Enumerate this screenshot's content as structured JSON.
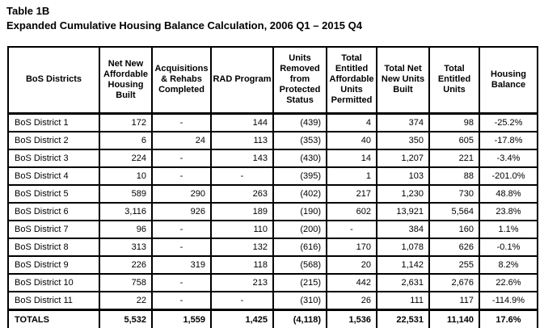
{
  "page": {
    "title": "Table 1B",
    "subtitle": "Expanded Cumulative Housing Balance Calculation, 2006 Q1 – 2015 Q4"
  },
  "colors": {
    "text": "#000000",
    "border": "#000000",
    "background": "#ffffff"
  },
  "table": {
    "columns": [
      "BoS Districts",
      "Net New Affordable Housing Built",
      "Acquisitions & Rehabs Completed",
      "RAD Program",
      "Units Removed from Protected Status",
      "Total Entitled Affordable Units Permitted",
      "Total Net New Units Built",
      "Total Entitled Units",
      "Housing Balance"
    ],
    "rows": [
      {
        "cells": [
          "BoS District 1",
          "172",
          "-",
          "144",
          "(439)",
          "4",
          "374",
          "98",
          "-25.2%"
        ]
      },
      {
        "cells": [
          "BoS District 2",
          "6",
          "24",
          "113",
          "(353)",
          "40",
          "350",
          "605",
          "-17.8%"
        ]
      },
      {
        "cells": [
          "BoS District 3",
          "224",
          "-",
          "143",
          "(430)",
          "14",
          "1,207",
          "221",
          "-3.4%"
        ]
      },
      {
        "cells": [
          "BoS District 4",
          "10",
          "-",
          "-",
          "(395)",
          "1",
          "103",
          "88",
          "-201.0%"
        ]
      },
      {
        "cells": [
          "BoS District 5",
          "589",
          "290",
          "263",
          "(402)",
          "217",
          "1,230",
          "730",
          "48.8%"
        ]
      },
      {
        "cells": [
          "BoS District 6",
          "3,116",
          "926",
          "189",
          "(190)",
          "602",
          "13,921",
          "5,564",
          "23.8%"
        ]
      },
      {
        "cells": [
          "BoS District 7",
          "96",
          "-",
          "110",
          "(200)",
          "-",
          "384",
          "160",
          "1.1%"
        ]
      },
      {
        "cells": [
          "BoS District 8",
          "313",
          "-",
          "132",
          "(616)",
          "170",
          "1,078",
          "626",
          "-0.1%"
        ]
      },
      {
        "cells": [
          "BoS District 9",
          "226",
          "319",
          "118",
          "(568)",
          "20",
          "1,142",
          "255",
          "8.2%"
        ]
      },
      {
        "cells": [
          "BoS District 10",
          "758",
          "-",
          "213",
          "(215)",
          "442",
          "2,631",
          "2,676",
          "22.6%"
        ]
      },
      {
        "cells": [
          "BoS District 11",
          "22",
          "-",
          "-",
          "(310)",
          "26",
          "111",
          "117",
          "-114.9%"
        ]
      }
    ],
    "totals": {
      "cells": [
        "TOTALS",
        "5,532",
        "1,559",
        "1,425",
        "(4,118)",
        "1,536",
        "22,531",
        "11,140",
        "17.6%"
      ]
    }
  }
}
